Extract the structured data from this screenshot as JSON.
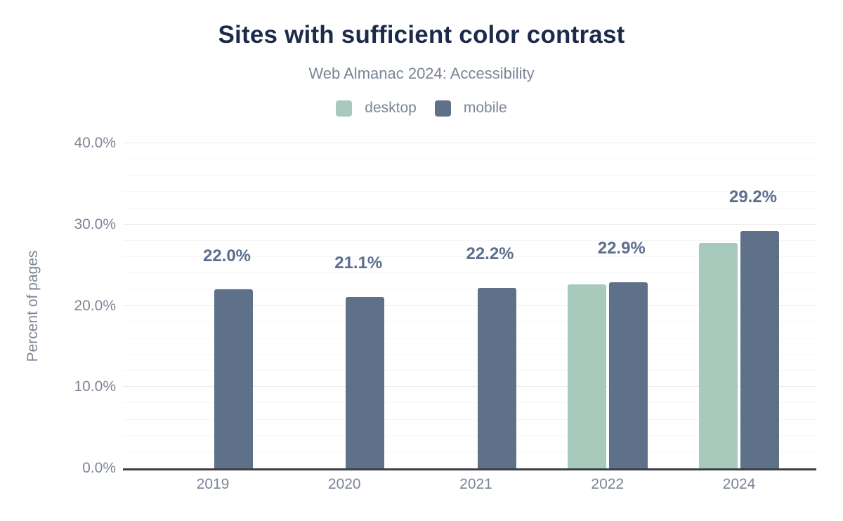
{
  "header": {
    "title": "Sites with sufficient color contrast",
    "subtitle": "Web Almanac 2024: Accessibility"
  },
  "legend": [
    {
      "name": "desktop",
      "label": "desktop",
      "color": "#a8cabc"
    },
    {
      "name": "mobile",
      "label": "mobile",
      "color": "#5f7089"
    }
  ],
  "colors": {
    "title": "#1c2b4a",
    "muted_text": "#7c8496",
    "value_label": "#5b6e8e",
    "axis_line": "#3b3f46",
    "grid_major": "#ebebeb",
    "grid_minor": "#f6f6f6",
    "desktop": "#a8cabc",
    "mobile": "#5f7089"
  },
  "chart_data": {
    "type": "bar",
    "title": "Sites with sufficient color contrast",
    "subtitle": "Web Almanac 2024: Accessibility",
    "categories": [
      "2019",
      "2020",
      "2021",
      "2022",
      "2024"
    ],
    "series": [
      {
        "name": "desktop",
        "color": "#a8cabc",
        "values": [
          null,
          null,
          null,
          22.6,
          27.7
        ]
      },
      {
        "name": "mobile",
        "color": "#5f7089",
        "values": [
          22.0,
          21.1,
          22.2,
          22.9,
          29.2
        ]
      }
    ],
    "value_labels": [
      "22.0%",
      "21.1%",
      "22.2%",
      "22.9%",
      "29.2%"
    ],
    "xlabel": "",
    "ylabel": "Percent of pages",
    "ylim": [
      0,
      40
    ],
    "yticks": [
      {
        "value": 0,
        "label": "0.0%"
      },
      {
        "value": 10,
        "label": "10.0%"
      },
      {
        "value": 20,
        "label": "20.0%"
      },
      {
        "value": 30,
        "label": "30.0%"
      },
      {
        "value": 40,
        "label": "40.0%"
      }
    ],
    "grid": {
      "on": true,
      "minor_step": 2,
      "major_step": 10
    },
    "legend_position": "top"
  }
}
